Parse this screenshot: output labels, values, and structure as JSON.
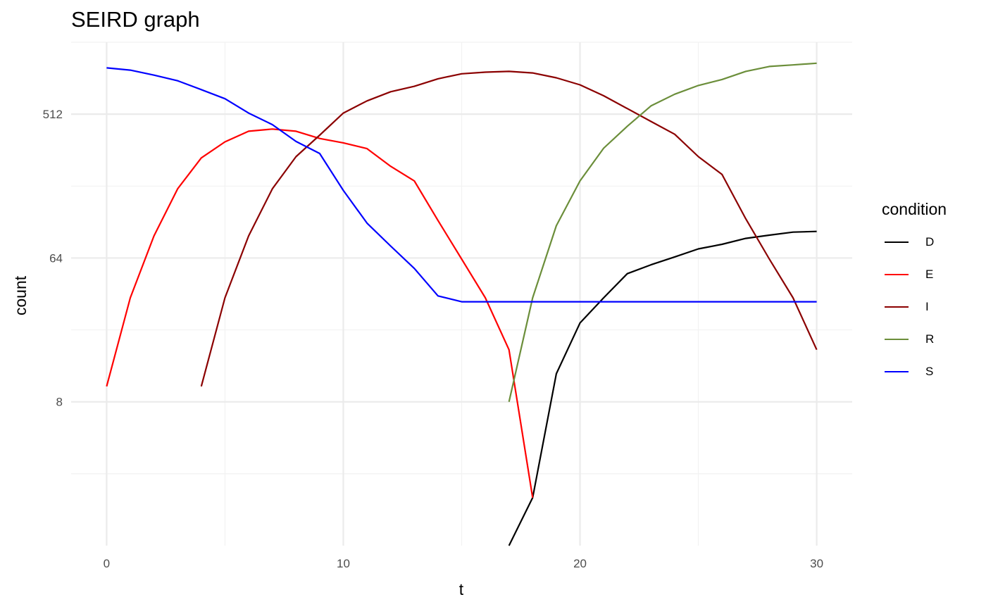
{
  "chart_data": {
    "type": "line",
    "title": "SEIRD graph",
    "xlabel": "t",
    "ylabel": "count",
    "y_scale": "log2",
    "xlim": [
      -1.5,
      31.5
    ],
    "ylim": [
      1.0,
      1448.2
    ],
    "x_ticks": [
      0,
      10,
      20,
      30
    ],
    "y_ticks": [
      8,
      64,
      512
    ],
    "grid": true,
    "legend_title": "condition",
    "legend_position": "right",
    "series": [
      {
        "name": "D",
        "color": "#000000",
        "points": [
          [
            17,
            1
          ],
          [
            18,
            2
          ],
          [
            19,
            12
          ],
          [
            20,
            25
          ],
          [
            21,
            36
          ],
          [
            22,
            51
          ],
          [
            23,
            58
          ],
          [
            24,
            65
          ],
          [
            25,
            73
          ],
          [
            26,
            78
          ],
          [
            27,
            85
          ],
          [
            28,
            89
          ],
          [
            29,
            93
          ],
          [
            30,
            94
          ]
        ]
      },
      {
        "name": "E",
        "color": "#ff0000",
        "points": [
          [
            0,
            10
          ],
          [
            1,
            36
          ],
          [
            2,
            88
          ],
          [
            3,
            174
          ],
          [
            4,
            272
          ],
          [
            5,
            343
          ],
          [
            6,
            400
          ],
          [
            7,
            413
          ],
          [
            8,
            400
          ],
          [
            9,
            360
          ],
          [
            10,
            338
          ],
          [
            11,
            311
          ],
          [
            12,
            241
          ],
          [
            13,
            195
          ],
          [
            14,
            110
          ],
          [
            15,
            63
          ],
          [
            16,
            36
          ],
          [
            17,
            17
          ],
          [
            18,
            2
          ]
        ]
      },
      {
        "name": "I",
        "color": "#8b0000",
        "points": [
          [
            4,
            10
          ],
          [
            5,
            36
          ],
          [
            6,
            88
          ],
          [
            7,
            174
          ],
          [
            8,
            277
          ],
          [
            9,
            378
          ],
          [
            10,
            520
          ],
          [
            11,
            620
          ],
          [
            12,
            708
          ],
          [
            13,
            766
          ],
          [
            14,
            854
          ],
          [
            15,
            918
          ],
          [
            16,
            940
          ],
          [
            17,
            950
          ],
          [
            18,
            929
          ],
          [
            19,
            866
          ],
          [
            20,
            782
          ],
          [
            21,
            668
          ],
          [
            22,
            555
          ],
          [
            23,
            461
          ],
          [
            24,
            383
          ],
          [
            25,
            277
          ],
          [
            26,
            214
          ],
          [
            27,
            113
          ],
          [
            28,
            63
          ],
          [
            29,
            36
          ],
          [
            30,
            17
          ]
        ]
      },
      {
        "name": "R",
        "color": "#6b8e3a",
        "points": [
          [
            17,
            8
          ],
          [
            18,
            36
          ],
          [
            19,
            102
          ],
          [
            20,
            195
          ],
          [
            21,
            313
          ],
          [
            22,
            430
          ],
          [
            23,
            577
          ],
          [
            24,
            683
          ],
          [
            25,
            775
          ],
          [
            26,
            845
          ],
          [
            27,
            950
          ],
          [
            28,
            1020
          ],
          [
            29,
            1044
          ],
          [
            30,
            1069
          ]
        ]
      },
      {
        "name": "S",
        "color": "#0000ff",
        "points": [
          [
            0,
            1000
          ],
          [
            1,
            968
          ],
          [
            2,
            900
          ],
          [
            3,
            830
          ],
          [
            4,
            730
          ],
          [
            5,
            640
          ],
          [
            6,
            520
          ],
          [
            7,
            440
          ],
          [
            8,
            345
          ],
          [
            9,
            290
          ],
          [
            10,
            170
          ],
          [
            11,
            106
          ],
          [
            12,
            76
          ],
          [
            13,
            55
          ],
          [
            14,
            37
          ],
          [
            15,
            34
          ],
          [
            16,
            34
          ],
          [
            17,
            34
          ],
          [
            18,
            34
          ],
          [
            19,
            34
          ],
          [
            20,
            34
          ],
          [
            21,
            34
          ],
          [
            22,
            34
          ],
          [
            23,
            34
          ],
          [
            24,
            34
          ],
          [
            25,
            34
          ],
          [
            26,
            34
          ],
          [
            27,
            34
          ],
          [
            28,
            34
          ],
          [
            29,
            34
          ],
          [
            30,
            34
          ]
        ]
      }
    ]
  }
}
